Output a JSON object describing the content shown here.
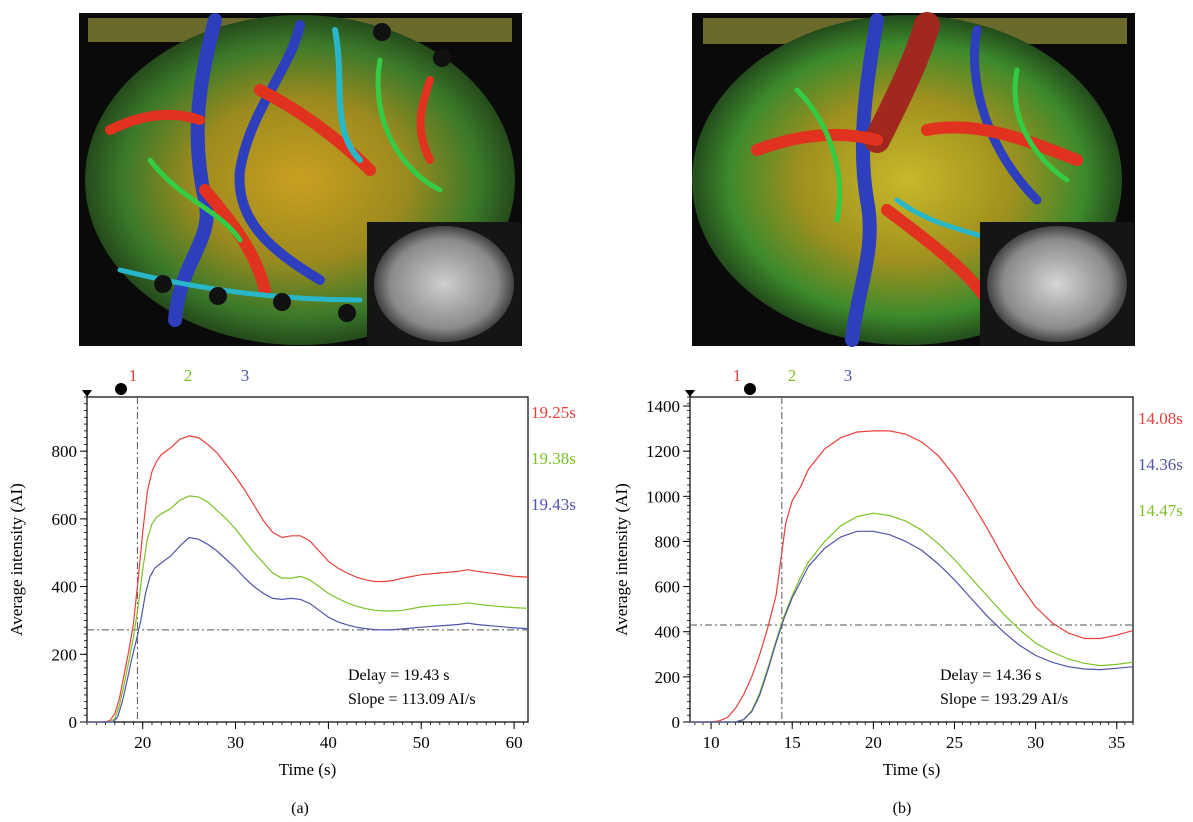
{
  "colors": {
    "red": "#e8403a",
    "green": "#7cc228",
    "blue": "#5154a8",
    "axis": "#000000",
    "refline": "#555555"
  },
  "chart_data": [
    {
      "type": "line",
      "panel_label": "(a)",
      "xlabel": "Time (s)",
      "ylabel": "Average intensity (AI)",
      "xlim": [
        14,
        61.5
      ],
      "ylim": [
        0,
        960
      ],
      "xticks": [
        20,
        30,
        40,
        50,
        60
      ],
      "yticks": [
        0,
        200,
        400,
        600,
        800
      ],
      "top_markers": [
        "1",
        "2",
        "3"
      ],
      "series": [
        {
          "name": "1",
          "color": "red",
          "time_label": "19.25s",
          "points": [
            [
              14,
              0
            ],
            [
              16,
              0
            ],
            [
              16.5,
              5
            ],
            [
              17,
              25
            ],
            [
              17.5,
              70
            ],
            [
              18,
              140
            ],
            [
              18.5,
              210
            ],
            [
              19,
              290
            ],
            [
              19.5,
              420
            ],
            [
              20,
              560
            ],
            [
              20.5,
              680
            ],
            [
              21,
              740
            ],
            [
              21.5,
              770
            ],
            [
              22,
              790
            ],
            [
              23,
              810
            ],
            [
              24,
              835
            ],
            [
              25,
              845
            ],
            [
              26,
              840
            ],
            [
              27,
              820
            ],
            [
              28,
              795
            ],
            [
              29,
              760
            ],
            [
              30,
              725
            ],
            [
              31,
              685
            ],
            [
              32,
              640
            ],
            [
              33,
              595
            ],
            [
              34,
              560
            ],
            [
              35,
              545
            ],
            [
              36,
              550
            ],
            [
              37,
              550
            ],
            [
              38,
              535
            ],
            [
              39,
              505
            ],
            [
              40,
              475
            ],
            [
              41,
              455
            ],
            [
              42,
              440
            ],
            [
              43,
              428
            ],
            [
              44,
              420
            ],
            [
              45,
              415
            ],
            [
              46,
              415
            ],
            [
              47,
              418
            ],
            [
              48,
              425
            ],
            [
              50,
              435
            ],
            [
              52,
              440
            ],
            [
              54,
              445
            ],
            [
              55,
              450
            ],
            [
              56,
              445
            ],
            [
              58,
              438
            ],
            [
              60,
              430
            ],
            [
              61.5,
              428
            ]
          ]
        },
        {
          "name": "2",
          "color": "green",
          "time_label": "19.38s",
          "points": [
            [
              14,
              0
            ],
            [
              16.5,
              0
            ],
            [
              17,
              10
            ],
            [
              17.5,
              50
            ],
            [
              18,
              110
            ],
            [
              18.5,
              180
            ],
            [
              19,
              250
            ],
            [
              19.5,
              340
            ],
            [
              20,
              450
            ],
            [
              20.5,
              540
            ],
            [
              21,
              585
            ],
            [
              21.5,
              605
            ],
            [
              22,
              615
            ],
            [
              23,
              630
            ],
            [
              24,
              655
            ],
            [
              25,
              668
            ],
            [
              26,
              665
            ],
            [
              27,
              650
            ],
            [
              28,
              625
            ],
            [
              29,
              600
            ],
            [
              30,
              570
            ],
            [
              31,
              535
            ],
            [
              32,
              500
            ],
            [
              33,
              470
            ],
            [
              34,
              440
            ],
            [
              35,
              425
            ],
            [
              36,
              425
            ],
            [
              37,
              430
            ],
            [
              38,
              420
            ],
            [
              39,
              400
            ],
            [
              40,
              380
            ],
            [
              41,
              365
            ],
            [
              42,
              352
            ],
            [
              43,
              342
            ],
            [
              44,
              335
            ],
            [
              45,
              330
            ],
            [
              46,
              328
            ],
            [
              47,
              328
            ],
            [
              48,
              330
            ],
            [
              50,
              340
            ],
            [
              52,
              345
            ],
            [
              54,
              348
            ],
            [
              55,
              352
            ],
            [
              56,
              348
            ],
            [
              58,
              342
            ],
            [
              60,
              338
            ],
            [
              61.5,
              336
            ]
          ]
        },
        {
          "name": "3",
          "color": "blue",
          "time_label": "19.43s",
          "points": [
            [
              14,
              0
            ],
            [
              16.8,
              0
            ],
            [
              17.3,
              15
            ],
            [
              17.8,
              60
            ],
            [
              18.3,
              120
            ],
            [
              18.8,
              185
            ],
            [
              19.3,
              240
            ],
            [
              19.8,
              300
            ],
            [
              20.3,
              380
            ],
            [
              20.8,
              430
            ],
            [
              21.3,
              455
            ],
            [
              22,
              470
            ],
            [
              23,
              490
            ],
            [
              24,
              520
            ],
            [
              25,
              545
            ],
            [
              26,
              540
            ],
            [
              27,
              525
            ],
            [
              28,
              505
            ],
            [
              29,
              480
            ],
            [
              30,
              455
            ],
            [
              31,
              425
            ],
            [
              32,
              400
            ],
            [
              33,
              380
            ],
            [
              34,
              365
            ],
            [
              35,
              362
            ],
            [
              36,
              365
            ],
            [
              37,
              362
            ],
            [
              38,
              350
            ],
            [
              39,
              330
            ],
            [
              40,
              310
            ],
            [
              41,
              296
            ],
            [
              42,
              287
            ],
            [
              43,
              280
            ],
            [
              44,
              276
            ],
            [
              45,
              273
            ],
            [
              46,
              272
            ],
            [
              47,
              273
            ],
            [
              48,
              275
            ],
            [
              50,
              280
            ],
            [
              52,
              284
            ],
            [
              54,
              288
            ],
            [
              55,
              292
            ],
            [
              56,
              288
            ],
            [
              58,
              283
            ],
            [
              60,
              278
            ],
            [
              61.5,
              276
            ]
          ]
        }
      ],
      "crosshair": {
        "x": 19.43,
        "y": 272
      },
      "annotation": [
        "Delay = 19.43 s",
        "Slope = 113.09 AI/s"
      ]
    },
    {
      "type": "line",
      "panel_label": "(b)",
      "xlabel": "Time (s)",
      "ylabel": "Average intensity (AI)",
      "xlim": [
        8.7,
        36
      ],
      "ylim": [
        0,
        1440
      ],
      "xticks": [
        10,
        15,
        20,
        25,
        30,
        35
      ],
      "yticks": [
        0,
        200,
        400,
        600,
        800,
        1000,
        1200,
        1400
      ],
      "top_markers": [
        "1",
        "2",
        "3"
      ],
      "series": [
        {
          "name": "1",
          "color": "red",
          "time_label": "14.08s",
          "points": [
            [
              8.7,
              0
            ],
            [
              10,
              0
            ],
            [
              10.5,
              5
            ],
            [
              11,
              20
            ],
            [
              11.5,
              60
            ],
            [
              12,
              120
            ],
            [
              12.5,
              200
            ],
            [
              13,
              300
            ],
            [
              13.5,
              420
            ],
            [
              14,
              560
            ],
            [
              14.3,
              720
            ],
            [
              14.6,
              880
            ],
            [
              15,
              980
            ],
            [
              15.5,
              1040
            ],
            [
              16,
              1120
            ],
            [
              17,
              1210
            ],
            [
              18,
              1260
            ],
            [
              19,
              1285
            ],
            [
              20,
              1290
            ],
            [
              21,
              1290
            ],
            [
              22,
              1275
            ],
            [
              23,
              1240
            ],
            [
              24,
              1180
            ],
            [
              25,
              1090
            ],
            [
              26,
              980
            ],
            [
              27,
              860
            ],
            [
              28,
              730
            ],
            [
              29,
              610
            ],
            [
              30,
              510
            ],
            [
              31,
              440
            ],
            [
              32,
              395
            ],
            [
              33,
              370
            ],
            [
              34,
              370
            ],
            [
              35,
              385
            ],
            [
              36,
              405
            ]
          ]
        },
        {
          "name": "2",
          "color": "green",
          "time_label": "14.47s",
          "points": [
            [
              8.7,
              0
            ],
            [
              11.5,
              0
            ],
            [
              12,
              10
            ],
            [
              12.5,
              50
            ],
            [
              13,
              130
            ],
            [
              13.5,
              240
            ],
            [
              14,
              360
            ],
            [
              14.5,
              470
            ],
            [
              15,
              560
            ],
            [
              15.5,
              640
            ],
            [
              16,
              710
            ],
            [
              17,
              800
            ],
            [
              18,
              870
            ],
            [
              19,
              910
            ],
            [
              20,
              925
            ],
            [
              21,
              915
            ],
            [
              22,
              890
            ],
            [
              23,
              850
            ],
            [
              24,
              790
            ],
            [
              25,
              720
            ],
            [
              26,
              640
            ],
            [
              27,
              560
            ],
            [
              28,
              480
            ],
            [
              29,
              410
            ],
            [
              30,
              350
            ],
            [
              31,
              310
            ],
            [
              32,
              280
            ],
            [
              33,
              260
            ],
            [
              34,
              250
            ],
            [
              35,
              255
            ],
            [
              36,
              265
            ]
          ]
        },
        {
          "name": "3",
          "color": "blue",
          "time_label": "14.36s",
          "points": [
            [
              8.7,
              0
            ],
            [
              11.5,
              0
            ],
            [
              12,
              10
            ],
            [
              12.5,
              45
            ],
            [
              13,
              120
            ],
            [
              13.5,
              230
            ],
            [
              14,
              350
            ],
            [
              14.5,
              460
            ],
            [
              15,
              550
            ],
            [
              15.5,
              620
            ],
            [
              16,
              690
            ],
            [
              17,
              770
            ],
            [
              18,
              820
            ],
            [
              19,
              845
            ],
            [
              20,
              845
            ],
            [
              21,
              830
            ],
            [
              22,
              800
            ],
            [
              23,
              760
            ],
            [
              24,
              700
            ],
            [
              25,
              630
            ],
            [
              26,
              550
            ],
            [
              27,
              470
            ],
            [
              28,
              400
            ],
            [
              29,
              340
            ],
            [
              30,
              295
            ],
            [
              31,
              265
            ],
            [
              32,
              245
            ],
            [
              33,
              235
            ],
            [
              34,
              232
            ],
            [
              35,
              238
            ],
            [
              36,
              245
            ]
          ]
        }
      ],
      "crosshair": {
        "x": 14.36,
        "y": 430
      },
      "annotation": [
        "Delay = 14.36 s",
        "Slope = 193.29 AI/s"
      ]
    }
  ]
}
